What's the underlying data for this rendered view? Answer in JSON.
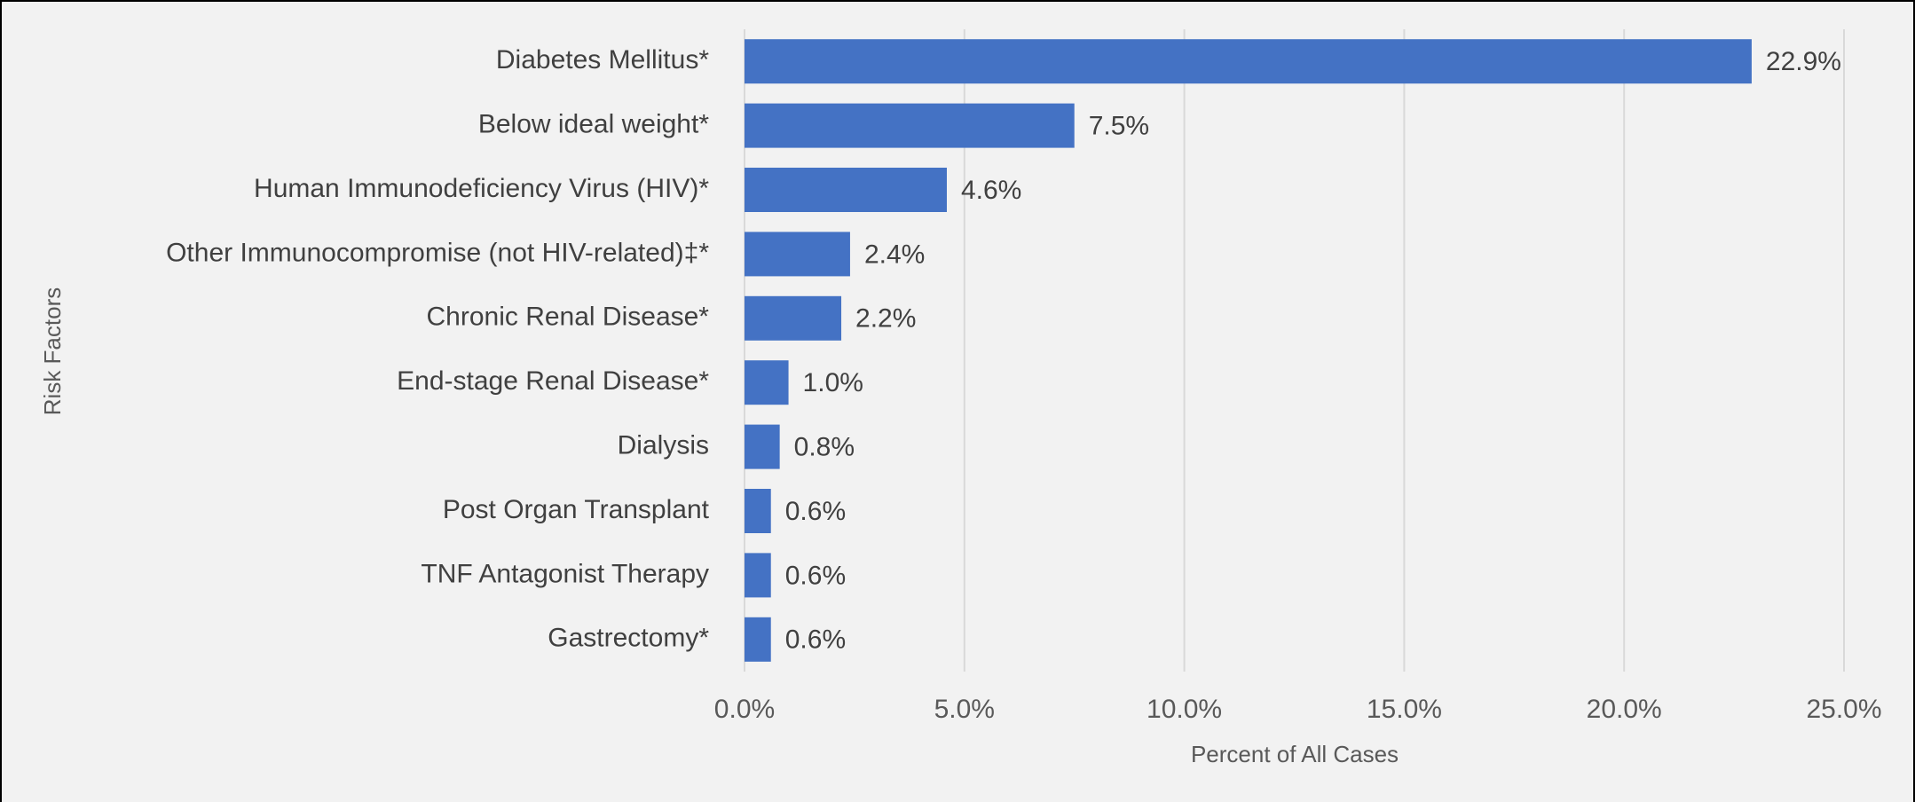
{
  "chart_data": {
    "type": "bar",
    "orientation": "horizontal",
    "x_label": "Percent of All Cases",
    "y_label": "Risk Factors",
    "categories": [
      "Diabetes Mellitus*",
      "Below ideal weight*",
      "Human Immunodeficiency Virus (HIV)*",
      "Other Immunocompromise (not HIV-related)‡*",
      "Chronic Renal Disease*",
      "End-stage Renal Disease*",
      "Dialysis",
      "Post Organ Transplant",
      "TNF Antagonist Therapy",
      "Gastrectomy*"
    ],
    "values": [
      22.9,
      7.5,
      4.6,
      2.4,
      2.2,
      1.0,
      0.8,
      0.6,
      0.6,
      0.6
    ],
    "value_labels": [
      "22.9%",
      "7.5%",
      "4.6%",
      "2.4%",
      "2.2%",
      "1.0%",
      "0.8%",
      "0.6%",
      "0.6%",
      "0.6%"
    ],
    "color": "#4472c4",
    "xlim": [
      0,
      25
    ],
    "xticks": [
      {
        "value": 0,
        "label": "0.0%"
      },
      {
        "value": 5,
        "label": "5.0%"
      },
      {
        "value": 10,
        "label": "10.0%"
      },
      {
        "value": 15,
        "label": "15.0%"
      },
      {
        "value": 20,
        "label": "20.0%"
      },
      {
        "value": 25,
        "label": "25.0%"
      }
    ],
    "grid": true
  }
}
